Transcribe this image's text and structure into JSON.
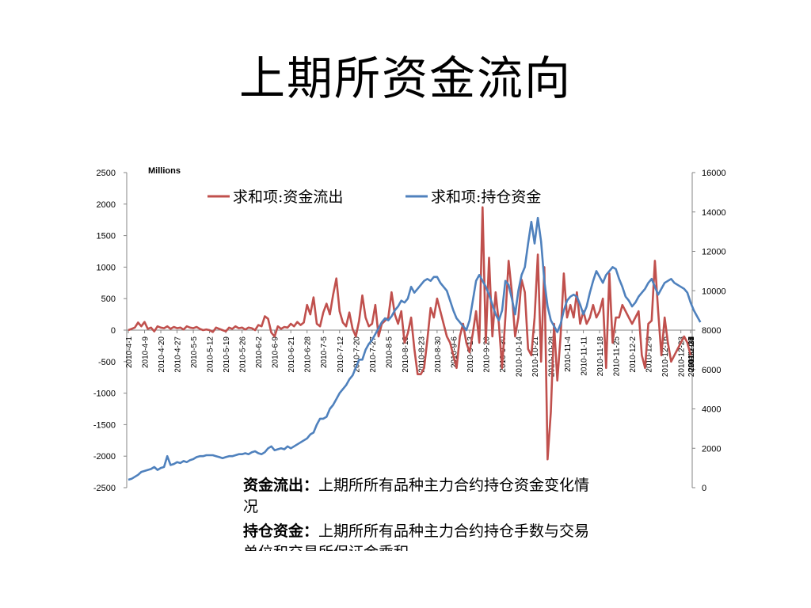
{
  "slide": {
    "title": "上期所资金流向",
    "desc1_label": "资金流出：",
    "desc1_text": "上期所所有品种主力合约持仓资金变化情况",
    "desc2_label": "持仓资金：",
    "desc2_text": "上期所所有品种主力合约持仓手数与交易单位和交易所保证金乘积"
  },
  "chart_data": {
    "type": "line",
    "unit_label": "Millions",
    "legend_position": "top",
    "grid": false,
    "y_left": {
      "min": -2500,
      "max": 2500,
      "ticks": [
        -2500,
        -2000,
        -1500,
        -1000,
        -500,
        0,
        500,
        1000,
        1500,
        2000,
        2500
      ]
    },
    "y_right": {
      "min": 0,
      "max": 16000,
      "ticks": [
        0,
        2000,
        4000,
        6000,
        8000,
        10000,
        12000,
        14000,
        16000
      ]
    },
    "x_tick_labels": [
      "2010-4-1",
      "2010-4-9",
      "2010-4-20",
      "2010-4-27",
      "2010-5-5",
      "2010-5-12",
      "2010-5-19",
      "2010-5-26",
      "2010-6-2",
      "2010-6-9",
      "2010-6-21",
      "2010-6-28",
      "2010-7-5",
      "2010-7-12",
      "2010-7-20",
      "2010-7-27",
      "2010-8-5",
      "2010-8-16",
      "2010-8-23",
      "2010-8-30",
      "2010-9-6",
      "2010-9-13",
      "2010-9-20",
      "2010-9-30",
      "2010-10-14",
      "2010-10-21",
      "2010-10-28",
      "2010-11-4",
      "2010-11-11",
      "2010-11-18",
      "2010-11-25",
      "2010-12-2",
      "2010-12-9",
      "2010-12-16",
      "2010-12-23",
      "2010-12-30",
      "2011-1-7",
      "2011-1-14",
      "2011-1-21",
      "2011-1-28"
    ],
    "points_per_tick": 5,
    "series": [
      {
        "name": "求和项:资金流出",
        "axis": "left",
        "color": "#c0504d",
        "values": [
          0,
          20,
          40,
          120,
          60,
          130,
          20,
          40,
          -20,
          60,
          40,
          30,
          60,
          20,
          50,
          30,
          40,
          10,
          60,
          40,
          30,
          50,
          20,
          0,
          10,
          0,
          -30,
          40,
          20,
          0,
          -20,
          40,
          20,
          60,
          30,
          40,
          10,
          40,
          30,
          0,
          80,
          60,
          220,
          180,
          -40,
          -100,
          60,
          20,
          50,
          40,
          100,
          60,
          130,
          80,
          120,
          400,
          250,
          520,
          100,
          60,
          280,
          420,
          250,
          560,
          820,
          300,
          120,
          60,
          280,
          20,
          -100,
          150,
          550,
          200,
          60,
          100,
          400,
          -100,
          100,
          150,
          200,
          600,
          250,
          100,
          300,
          -200,
          -50,
          200,
          -300,
          -700,
          -700,
          -600,
          -150,
          350,
          200,
          500,
          300,
          100,
          -100,
          -200,
          -400,
          -600,
          -100,
          100,
          -200,
          -350,
          -50,
          300,
          -200,
          1950,
          -200,
          1150,
          -100,
          600,
          100,
          -600,
          200,
          1100,
          600,
          -100,
          200,
          800,
          600,
          -300,
          -400,
          200,
          1200,
          -500,
          1000,
          -2050,
          -1300,
          100,
          -800,
          -100,
          900,
          200,
          400,
          200,
          600,
          100,
          300,
          100,
          200,
          400,
          200,
          300,
          500,
          -600,
          900,
          -200,
          200,
          200,
          400,
          300,
          200,
          100,
          200,
          300,
          -400,
          -600,
          100,
          150,
          1100,
          300,
          -400,
          200,
          -200,
          -500,
          -400,
          -300,
          -200,
          -100,
          -200,
          -400
        ]
      },
      {
        "name": "求和项:持仓资金",
        "axis": "right",
        "color": "#4f81bd",
        "values": [
          400,
          450,
          550,
          650,
          800,
          850,
          900,
          950,
          1050,
          900,
          1000,
          1050,
          1600,
          1150,
          1200,
          1300,
          1250,
          1350,
          1300,
          1400,
          1450,
          1550,
          1600,
          1600,
          1650,
          1650,
          1650,
          1600,
          1550,
          1500,
          1550,
          1600,
          1600,
          1650,
          1700,
          1700,
          1750,
          1700,
          1800,
          1850,
          1750,
          1700,
          1800,
          2000,
          2100,
          1900,
          1950,
          2000,
          1950,
          2100,
          2000,
          2100,
          2200,
          2300,
          2400,
          2500,
          2700,
          2800,
          3200,
          3500,
          3500,
          3600,
          4000,
          4200,
          4500,
          4800,
          5000,
          5200,
          5500,
          5700,
          6100,
          6500,
          6500,
          7000,
          7300,
          7500,
          7800,
          8100,
          8400,
          8600,
          8500,
          8700,
          9000,
          9200,
          9500,
          9400,
          9600,
          10200,
          9900,
          10100,
          10300,
          10500,
          10600,
          10500,
          10700,
          10700,
          10400,
          10200,
          10000,
          9500,
          9000,
          8600,
          8400,
          8200,
          8000,
          8500,
          9500,
          10500,
          10800,
          10500,
          10200,
          9800,
          9300,
          8800,
          8500,
          9000,
          10500,
          10300,
          9600,
          8800,
          10000,
          10800,
          11200,
          12400,
          13500,
          12400,
          13700,
          12500,
          10500,
          9200,
          8500,
          8200,
          7900,
          8300,
          9000,
          9500,
          9700,
          9800,
          9700,
          9300,
          8800,
          9200,
          9900,
          10500,
          11000,
          10700,
          10400,
          10800,
          11000,
          11200,
          11100,
          10600,
          10200,
          9700,
          9500,
          9200,
          9400,
          9700,
          9900,
          10100,
          10400,
          10600,
          10200,
          9800,
          10100,
          10400,
          10500,
          10600,
          10400,
          10300,
          10200,
          10100,
          9900,
          9400,
          9000,
          8700,
          8400
        ]
      }
    ]
  }
}
